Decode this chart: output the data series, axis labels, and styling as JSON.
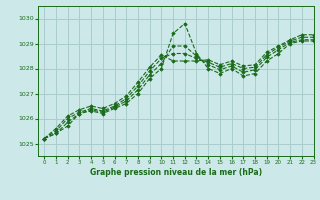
{
  "title": "Graphe pression niveau de la mer (hPa)",
  "bg_color": "#cce8e8",
  "grid_color": "#aacccc",
  "line_color": "#1a6b1a",
  "xlim": [
    -0.5,
    23
  ],
  "ylim": [
    1024.5,
    1030.5
  ],
  "yticks": [
    1025,
    1026,
    1027,
    1028,
    1029,
    1030
  ],
  "xticks": [
    0,
    1,
    2,
    3,
    4,
    5,
    6,
    7,
    8,
    9,
    10,
    11,
    12,
    13,
    14,
    15,
    16,
    17,
    18,
    19,
    20,
    21,
    22,
    23
  ],
  "series": [
    [
      1025.2,
      1025.4,
      1025.7,
      1026.2,
      1026.3,
      1026.2,
      1026.4,
      1026.6,
      1027.0,
      1027.6,
      1028.0,
      1029.4,
      1029.8,
      1028.6,
      1028.0,
      1027.8,
      1028.0,
      1027.7,
      1027.8,
      1028.3,
      1028.6,
      1029.0,
      1029.1,
      1029.1
    ],
    [
      1025.2,
      1025.4,
      1025.85,
      1026.2,
      1026.35,
      1026.25,
      1026.45,
      1026.7,
      1027.15,
      1027.75,
      1028.2,
      1028.9,
      1028.9,
      1028.5,
      1028.15,
      1027.95,
      1028.1,
      1027.85,
      1027.95,
      1028.45,
      1028.75,
      1029.05,
      1029.15,
      1029.15
    ],
    [
      1025.2,
      1025.5,
      1026.0,
      1026.25,
      1026.4,
      1026.3,
      1026.5,
      1026.8,
      1027.3,
      1027.9,
      1028.4,
      1028.6,
      1028.6,
      1028.4,
      1028.25,
      1028.05,
      1028.2,
      1028.0,
      1028.05,
      1028.55,
      1028.85,
      1029.1,
      1029.25,
      1029.25
    ],
    [
      1025.2,
      1025.6,
      1026.1,
      1026.35,
      1026.5,
      1026.4,
      1026.6,
      1026.9,
      1027.45,
      1028.05,
      1028.55,
      1028.3,
      1028.3,
      1028.3,
      1028.35,
      1028.15,
      1028.3,
      1028.1,
      1028.15,
      1028.65,
      1028.9,
      1029.15,
      1029.35,
      1029.35
    ]
  ]
}
